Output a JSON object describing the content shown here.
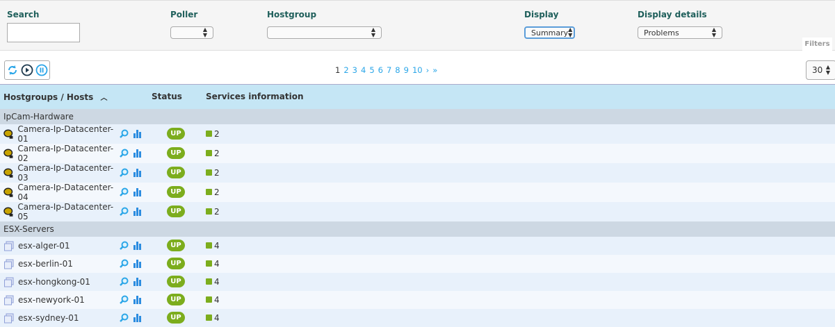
{
  "filters": {
    "search_label": "Search",
    "search_value": "",
    "poller_label": "Poller",
    "poller_value": "",
    "hostgroup_label": "Hostgroup",
    "hostgroup_value": "",
    "display_label": "Display",
    "display_value": "Summary",
    "details_label": "Display details",
    "details_value": "Problems",
    "filters_tab": "Filters"
  },
  "toolbar": {
    "icons": [
      "refresh-icon",
      "play-icon",
      "pause-icon"
    ],
    "pages": [
      "1",
      "2",
      "3",
      "4",
      "5",
      "6",
      "7",
      "8",
      "9",
      "10"
    ],
    "current_page": "1",
    "next": "›",
    "last": "»",
    "limit": "30"
  },
  "table": {
    "columns": [
      "Hostgroups / Hosts",
      "Status",
      "Services information"
    ],
    "sort_indicator": "^",
    "groups": [
      {
        "name": "IpCam-Hardware",
        "icon": "camera-icon",
        "hosts": [
          {
            "name": "Camera-Ip-Datacenter-01",
            "status": "UP",
            "services": "2"
          },
          {
            "name": "Camera-Ip-Datacenter-02",
            "status": "UP",
            "services": "2"
          },
          {
            "name": "Camera-Ip-Datacenter-03",
            "status": "UP",
            "services": "2"
          },
          {
            "name": "Camera-Ip-Datacenter-04",
            "status": "UP",
            "services": "2"
          },
          {
            "name": "Camera-Ip-Datacenter-05",
            "status": "UP",
            "services": "2"
          }
        ]
      },
      {
        "name": "ESX-Servers",
        "icon": "server-icon",
        "hosts": [
          {
            "name": "esx-alger-01",
            "status": "UP",
            "services": "4"
          },
          {
            "name": "esx-berlin-01",
            "status": "UP",
            "services": "4"
          },
          {
            "name": "esx-hongkong-01",
            "status": "UP",
            "services": "4"
          },
          {
            "name": "esx-newyork-01",
            "status": "UP",
            "services": "4"
          },
          {
            "name": "esx-sydney-01",
            "status": "UP",
            "services": "4"
          }
        ]
      }
    ]
  },
  "colors": {
    "up": "#7cad1d",
    "ok": "#7cad1d",
    "header": "#c5e6f5",
    "group": "#cdd8e3",
    "link": "#2ba6e8"
  }
}
